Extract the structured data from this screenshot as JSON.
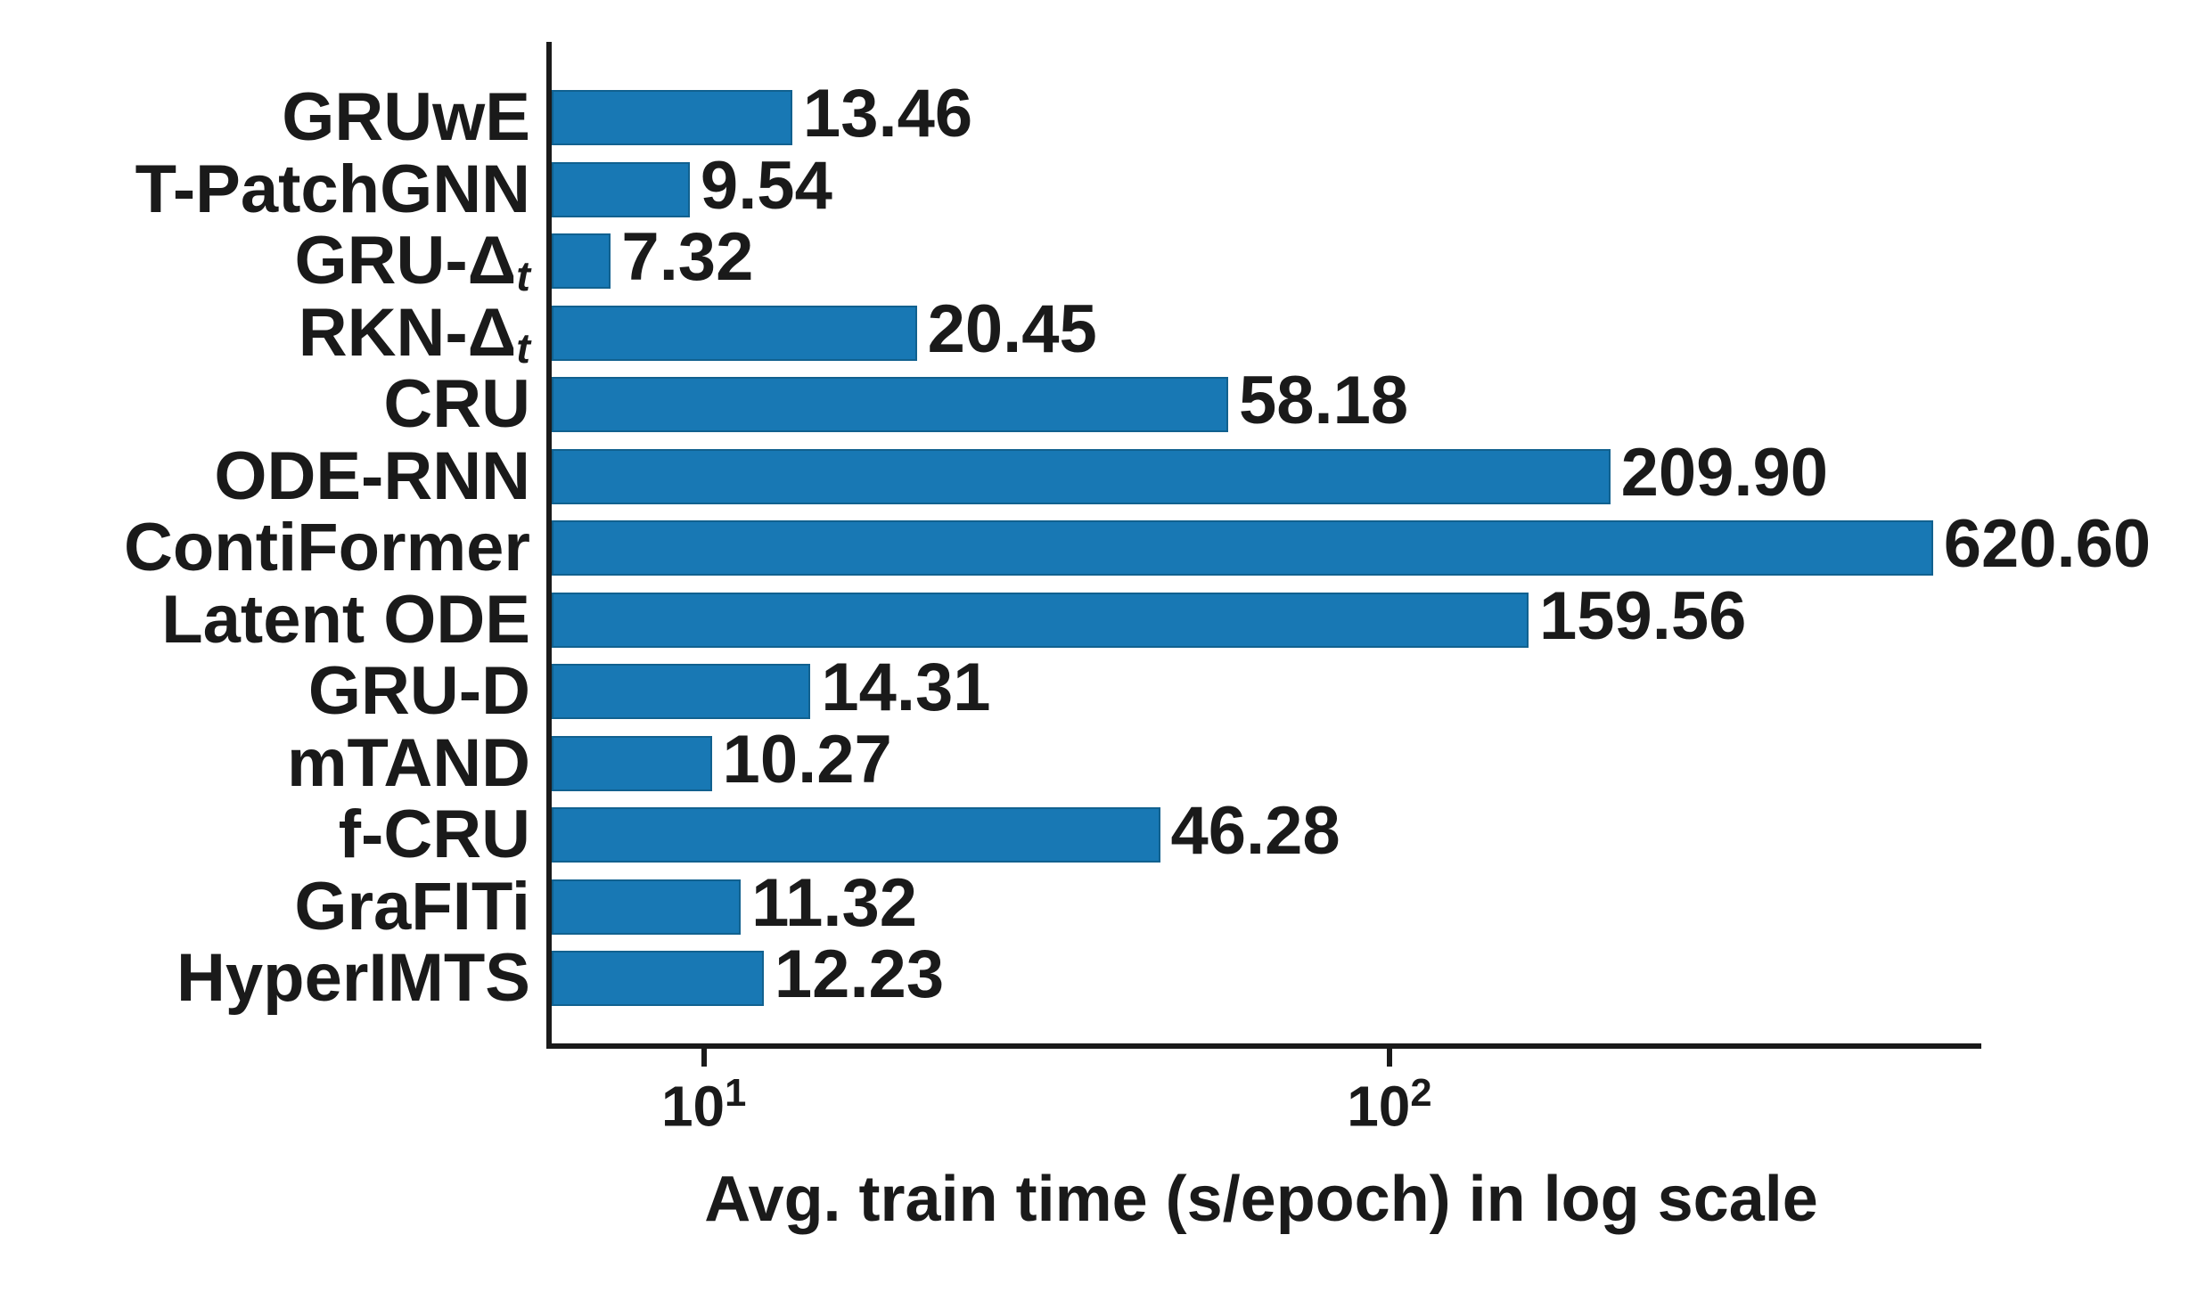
{
  "chart_data": {
    "type": "bar",
    "orientation": "horizontal",
    "title": "",
    "xlabel": "Avg. train time (s/epoch) in log scale",
    "ylabel": "",
    "x_scale": "log",
    "x_range": [
      6.0,
      730
    ],
    "grid": false,
    "legend": "none",
    "bar_color": "#1878b4",
    "bar_edge_color": "#11618f",
    "text_color": "#1a1a1a",
    "categories": [
      {
        "name": "GRUwE",
        "sub": ""
      },
      {
        "name": "T-PatchGNN",
        "sub": ""
      },
      {
        "name": "GRU-Δ",
        "sub": "t"
      },
      {
        "name": "RKN-Δ",
        "sub": "t"
      },
      {
        "name": "CRU",
        "sub": ""
      },
      {
        "name": "ODE-RNN",
        "sub": ""
      },
      {
        "name": "ContiFormer",
        "sub": ""
      },
      {
        "name": "Latent ODE",
        "sub": ""
      },
      {
        "name": "GRU-D",
        "sub": ""
      },
      {
        "name": "mTAND",
        "sub": ""
      },
      {
        "name": "f-CRU",
        "sub": ""
      },
      {
        "name": "GraFITi",
        "sub": ""
      },
      {
        "name": "HyperIMTS",
        "sub": ""
      }
    ],
    "values": [
      13.46,
      9.54,
      7.32,
      20.45,
      58.18,
      209.9,
      620.6,
      159.56,
      14.31,
      10.27,
      46.28,
      11.32,
      12.23
    ],
    "value_labels": [
      "13.46",
      "9.54",
      "7.32",
      "20.45",
      "58.18",
      "209.90",
      "620.60",
      "159.56",
      "14.31",
      "10.27",
      "46.28",
      "11.32",
      "12.23"
    ],
    "x_ticks": [
      {
        "base": "10",
        "exp": "1",
        "value": 10
      },
      {
        "base": "10",
        "exp": "2",
        "value": 100
      }
    ]
  }
}
